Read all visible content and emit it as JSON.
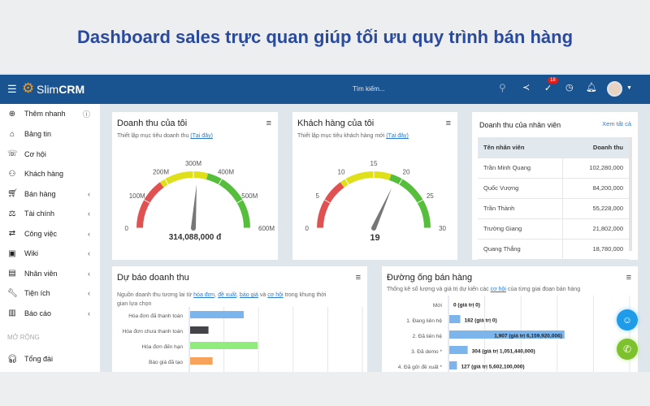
{
  "hero_title": "Dashboard sales trực quan giúp tối ưu quy trình bán hàng",
  "topbar": {
    "logo_text_light": "Slim",
    "logo_text_bold": "CRM",
    "search_placeholder": "Tìm kiếm...",
    "tasks_badge": "18",
    "icons": [
      "menu-icon",
      "search-icon",
      "share-icon",
      "check-icon",
      "clock-icon",
      "bell-icon",
      "avatar"
    ]
  },
  "sidebar": {
    "quick_add": "Thêm nhanh",
    "items": [
      {
        "label": "Bảng tin",
        "icon": "home-icon",
        "chevron": false
      },
      {
        "label": "Cơ hội",
        "icon": "phone-icon",
        "chevron": false
      },
      {
        "label": "Khách hàng",
        "icon": "user-icon",
        "chevron": false
      },
      {
        "label": "Bán hàng",
        "icon": "cart-icon",
        "chevron": true
      },
      {
        "label": "Tài chính",
        "icon": "scale-icon",
        "chevron": true
      },
      {
        "label": "Công việc",
        "icon": "handshake-icon",
        "chevron": true
      },
      {
        "label": "Wiki",
        "icon": "wiki-icon",
        "chevron": true
      },
      {
        "label": "Nhân viên",
        "icon": "badge-icon",
        "chevron": true
      },
      {
        "label": "Tiện ích",
        "icon": "wrench-icon",
        "chevron": true
      },
      {
        "label": "Báo cáo",
        "icon": "report-icon",
        "chevron": true
      }
    ],
    "section": "MỞ RỘNG",
    "extra": {
      "label": "Tổng đài",
      "icon": "headset-icon"
    }
  },
  "revenue_card": {
    "title": "Doanh thu của tôi",
    "subtitle": "Thiết lập mục tiêu doanh thu",
    "link": "(Tại đây)",
    "value_label": "314,088,000 đ",
    "gauge": {
      "min": 0,
      "max": 600,
      "value": 314.088,
      "ticks": [
        "0",
        "100M",
        "200M",
        "300M",
        "400M",
        "500M",
        "600M"
      ],
      "bands": [
        {
          "from": 0,
          "to": 180,
          "color": "#e05252"
        },
        {
          "from": 180,
          "to": 350,
          "color": "#dfe01a"
        },
        {
          "from": 350,
          "to": 600,
          "color": "#55bf3b"
        }
      ]
    }
  },
  "customer_card": {
    "title": "Khách hàng của tôi",
    "subtitle": "Thiết lập mục tiêu khách hàng mới",
    "link": "(Tại đây)",
    "value_label": "19",
    "gauge": {
      "min": 0,
      "max": 30,
      "value": 19,
      "ticks": [
        "0",
        "5",
        "10",
        "15",
        "20",
        "25",
        "30"
      ],
      "bands": [
        {
          "from": 0,
          "to": 9,
          "color": "#e05252"
        },
        {
          "from": 9,
          "to": 18,
          "color": "#dfe01a"
        },
        {
          "from": 18,
          "to": 30,
          "color": "#55bf3b"
        }
      ]
    }
  },
  "staff_card": {
    "title": "Doanh thu của nhân viên",
    "view_all": "Xem tất cả",
    "columns": [
      "Tên nhân viên",
      "Doanh thu"
    ],
    "rows": [
      [
        "Trần Minh Quang",
        "102,280,000"
      ],
      [
        "Quốc Vượng",
        "84,200,000"
      ],
      [
        "Trần Thành",
        "55,228,000"
      ],
      [
        "Trường Giang",
        "21,802,000"
      ],
      [
        "Quang Thắng",
        "18,780,000"
      ]
    ]
  },
  "forecast_card": {
    "title": "Dự báo doanh thu",
    "subtitle_pre": "Nguồn doanh thu tương lai từ",
    "links": [
      "hóa đơn",
      "đề xuất",
      "báo giá",
      "cơ hội"
    ],
    "and": "và",
    "subtitle_post": "trong khung thời gian lựa chọn"
  },
  "pipeline_card": {
    "title": "Đường ống bán hàng",
    "subtitle_pre": "Thống kê số lượng và giá trị dự kiến các",
    "link": "cơ hội",
    "subtitle_post": "của từng giai đoạn bán hàng"
  },
  "chart_data": [
    {
      "type": "bar",
      "orientation": "horizontal",
      "categories": [
        "Hóa đơn đã thanh toán",
        "Hóa đơn chưa thanh toán",
        "Hóa đơn đến hạn",
        "Báo giá đã tạo"
      ],
      "values": [
        1.55,
        0.53,
        1.95,
        0.65
      ],
      "colors": [
        "#7cb5ec",
        "#434348",
        "#90ed7d",
        "#f7a35c"
      ],
      "xlim": [
        0,
        5
      ],
      "grid": true
    },
    {
      "type": "bar",
      "orientation": "horizontal",
      "categories": [
        "Mới",
        "1. Đang liên hệ",
        "2. Đã liên hệ",
        "3. Đã demo *",
        "4. Đã gửi đề xuất *"
      ],
      "values": [
        0,
        182,
        1907,
        304,
        127
      ],
      "data_labels": [
        "0 (giá trị 0)",
        "182 (giá trị 0)",
        "1,907 (giá trị 6,159,920,006)",
        "304 (giá trị 1,051,440,000)",
        "127 (giá trị 5,602,100,000)"
      ],
      "color": "#7cb5ec",
      "xlim": [
        0,
        3000
      ],
      "grid": true
    }
  ],
  "fabs": [
    {
      "icon": "chatbot-icon",
      "color": "#1e9be9"
    },
    {
      "icon": "phone-call-icon",
      "color": "#7dc12f"
    }
  ]
}
